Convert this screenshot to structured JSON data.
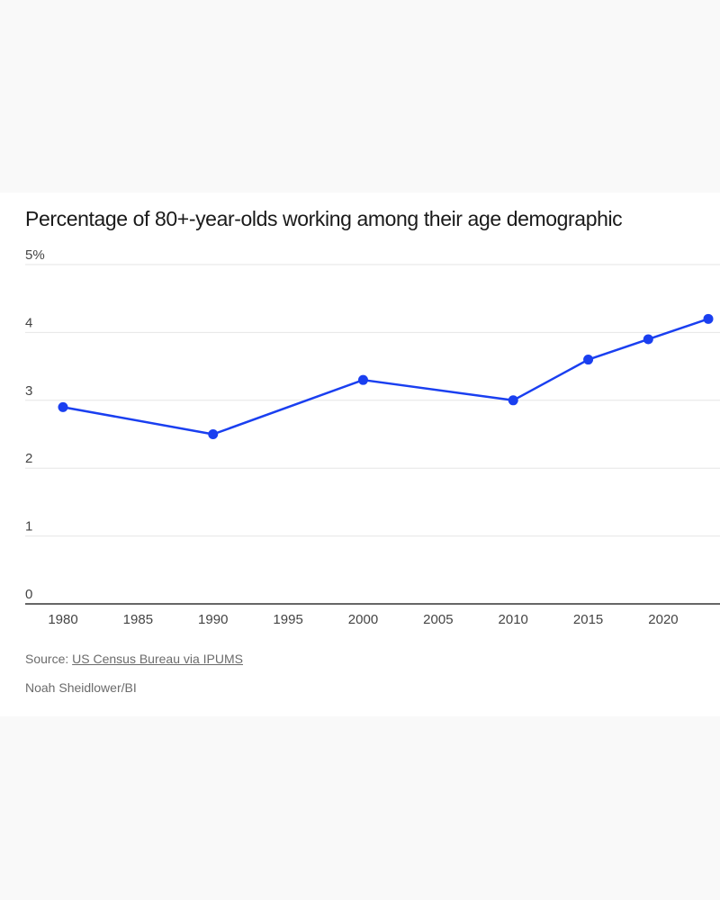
{
  "chart_data": {
    "type": "line",
    "title": "Percentage of 80+-year-olds working among their age demographic",
    "x_ticks": [
      1980,
      1985,
      1990,
      1995,
      2000,
      2005,
      2010,
      2015,
      2020
    ],
    "y_ticks": [
      "0",
      "1",
      "2",
      "3",
      "4",
      "5%"
    ],
    "xlim": [
      1980,
      2023
    ],
    "ylim": [
      0,
      5
    ],
    "grid": true,
    "series": [
      {
        "color": "#1a3ff0",
        "points": [
          {
            "x": 1980,
            "y": 2.9
          },
          {
            "x": 1990,
            "y": 2.5
          },
          {
            "x": 2000,
            "y": 3.3
          },
          {
            "x": 2010,
            "y": 3.0
          },
          {
            "x": 2015,
            "y": 3.6
          },
          {
            "x": 2019,
            "y": 3.9
          },
          {
            "x": 2023,
            "y": 4.2
          }
        ]
      }
    ]
  },
  "footer": {
    "source_prefix": "Source:",
    "source_link": "US Census Bureau via IPUMS",
    "credit": "Noah Sheidlower/BI"
  },
  "colors": {
    "line": "#1a3ff0",
    "grid": "#e6e6e6",
    "axis": "#333333",
    "label": "#444444"
  }
}
